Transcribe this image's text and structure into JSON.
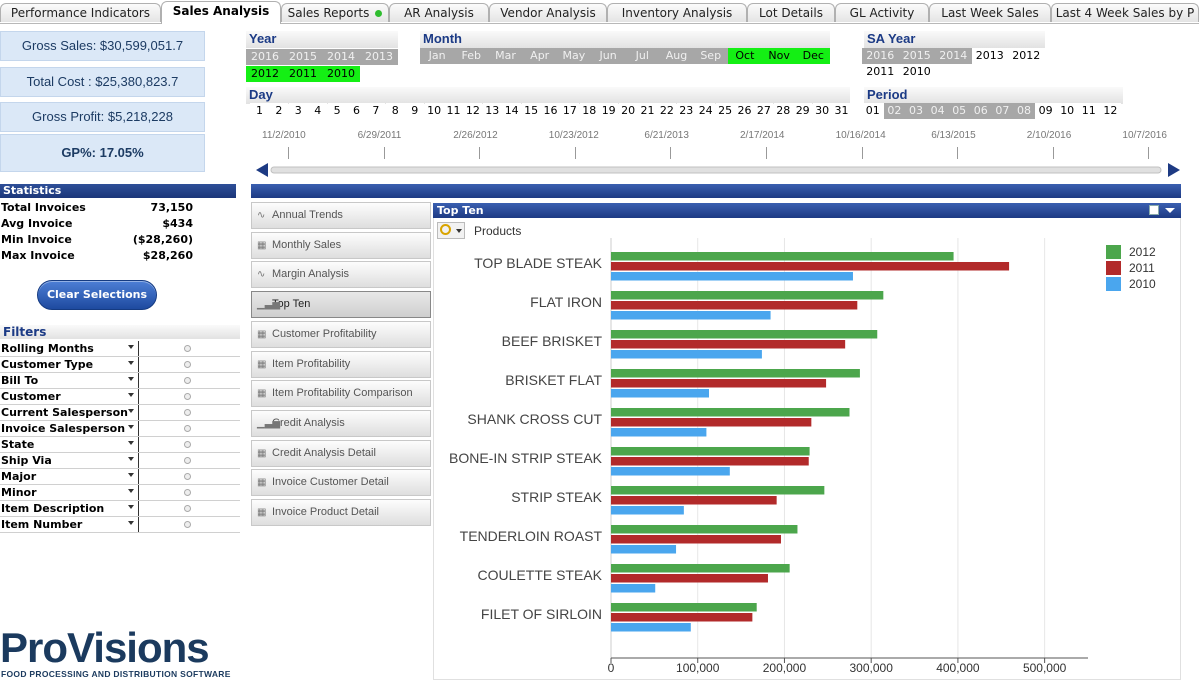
{
  "tabs": [
    "Performance Indicators",
    "Sales Analysis",
    "Sales Reports",
    "AR Analysis",
    "Vendor Analysis",
    "Inventory Analysis",
    "Lot Details",
    "GL Activity",
    "Last Week Sales",
    "Last 4 Week Sales by P"
  ],
  "active_tab": "Sales Analysis",
  "kpis": [
    "Gross Sales: $30,599,051.7",
    "Total Cost : $25,380,823.7",
    "Gross Profit: $5,218,228",
    "GP%: 17.05%"
  ],
  "statistics": {
    "title": "Statistics",
    "rows": [
      {
        "label": "Total Invoices",
        "value": "73,150"
      },
      {
        "label": "Avg Invoice",
        "value": "$434"
      },
      {
        "label": "Min Invoice",
        "value": "($28,260)"
      },
      {
        "label": "Max Invoice",
        "value": "$28,260"
      }
    ]
  },
  "clear_selections": "Clear Selections",
  "filters": {
    "title": "Filters",
    "items": [
      "Rolling Months",
      "Customer Type",
      "Bill To",
      "Customer",
      "Current Salesperson",
      "Invoice Salesperson",
      "State",
      "Ship Via",
      "Major",
      "Minor",
      "Item Description",
      "Item Number"
    ]
  },
  "year_box": {
    "title": "Year",
    "row1": [
      {
        "t": "2016",
        "s": "ex"
      },
      {
        "t": "2015",
        "s": "ex"
      },
      {
        "t": "2014",
        "s": "ex"
      },
      {
        "t": "2013",
        "s": "ex"
      }
    ],
    "row2": [
      {
        "t": "2012",
        "s": "sel"
      },
      {
        "t": "2011",
        "s": "sel"
      },
      {
        "t": "2010",
        "s": "sel"
      }
    ]
  },
  "month_box": {
    "title": "Month",
    "items": [
      {
        "t": "Jan",
        "s": "ex"
      },
      {
        "t": "Feb",
        "s": "ex"
      },
      {
        "t": "Mar",
        "s": "ex"
      },
      {
        "t": "Apr",
        "s": "ex"
      },
      {
        "t": "May",
        "s": "ex"
      },
      {
        "t": "Jun",
        "s": "ex"
      },
      {
        "t": "Jul",
        "s": "ex"
      },
      {
        "t": "Aug",
        "s": "ex"
      },
      {
        "t": "Sep",
        "s": "ex"
      },
      {
        "t": "Oct",
        "s": "sel"
      },
      {
        "t": "Nov",
        "s": "sel"
      },
      {
        "t": "Dec",
        "s": "sel"
      }
    ]
  },
  "day_box": {
    "title": "Day",
    "items": [
      "1",
      "2",
      "3",
      "4",
      "5",
      "6",
      "7",
      "8",
      "9",
      "10",
      "11",
      "12",
      "13",
      "14",
      "15",
      "16",
      "17",
      "18",
      "19",
      "20",
      "21",
      "22",
      "23",
      "24",
      "25",
      "26",
      "27",
      "28",
      "29",
      "30",
      "31"
    ]
  },
  "sa_year_box": {
    "title": "SA Year",
    "row1": [
      {
        "t": "2016",
        "s": "ex"
      },
      {
        "t": "2015",
        "s": "ex"
      },
      {
        "t": "2014",
        "s": "ex"
      },
      {
        "t": "2013",
        "s": "opt"
      },
      {
        "t": "2012",
        "s": "opt"
      }
    ],
    "row2": [
      {
        "t": "2011",
        "s": "opt"
      },
      {
        "t": "2010",
        "s": "opt"
      }
    ]
  },
  "period_box": {
    "title": "Period",
    "items": [
      {
        "t": "01",
        "s": "opt"
      },
      {
        "t": "02",
        "s": "ex"
      },
      {
        "t": "03",
        "s": "ex"
      },
      {
        "t": "04",
        "s": "ex"
      },
      {
        "t": "05",
        "s": "ex"
      },
      {
        "t": "06",
        "s": "ex"
      },
      {
        "t": "07",
        "s": "ex"
      },
      {
        "t": "08",
        "s": "ex"
      },
      {
        "t": "09",
        "s": "opt"
      },
      {
        "t": "10",
        "s": "opt"
      },
      {
        "t": "11",
        "s": "opt"
      },
      {
        "t": "12",
        "s": "opt"
      }
    ]
  },
  "timeline": [
    "11/2/2010",
    "6/29/2011",
    "2/26/2012",
    "10/23/2012",
    "6/21/2013",
    "2/17/2014",
    "10/16/2014",
    "6/13/2015",
    "2/10/2016",
    "10/7/2016"
  ],
  "sheet_buttons": [
    {
      "label": "Annual Trends",
      "icon": "line-chart-icon"
    },
    {
      "label": "Monthly Sales",
      "icon": "table-icon"
    },
    {
      "label": "Margin Analysis",
      "icon": "line-chart-icon"
    },
    {
      "label": "Top Ten",
      "icon": "bar-chart-icon",
      "active": true
    },
    {
      "label": "Customer Profitability",
      "icon": "table-icon"
    },
    {
      "label": "Item Profitability",
      "icon": "table-icon"
    },
    {
      "label": "Item Profitability Comparison",
      "icon": "table-icon"
    },
    {
      "label": "Credit Analysis",
      "icon": "bar-chart-icon"
    },
    {
      "label": "Credit Analysis Detail",
      "icon": "table-icon"
    },
    {
      "label": "Invoice Customer Detail",
      "icon": "table-icon"
    },
    {
      "label": "Invoice Product Detail",
      "icon": "table-icon"
    }
  ],
  "chart_panel": {
    "title": "Top Ten",
    "dimension": "Products"
  },
  "chart_data": {
    "type": "bar",
    "orientation": "horizontal",
    "title": "",
    "categories": [
      "TOP BLADE STEAK",
      "FLAT IRON",
      "BEEF BRISKET",
      "BRISKET FLAT",
      "SHANK CROSS CUT",
      "BONE-IN STRIP STEAK",
      "STRIP STEAK",
      "TENDERLOIN ROAST",
      "COULETTE STEAK",
      "FILET OF SIRLOIN"
    ],
    "series": [
      {
        "name": "2012",
        "color": "#4ca64c",
        "values": [
          395000,
          314000,
          307000,
          287000,
          275000,
          229000,
          246000,
          215000,
          206000,
          168000
        ]
      },
      {
        "name": "2011",
        "color": "#b22a2a",
        "values": [
          459000,
          284000,
          270000,
          248000,
          231000,
          228000,
          191000,
          196000,
          181000,
          163000
        ]
      },
      {
        "name": "2010",
        "color": "#4aa6ee",
        "values": [
          279000,
          184000,
          174000,
          113000,
          110000,
          137000,
          84000,
          75000,
          51000,
          92000
        ]
      }
    ],
    "xlim": [
      0,
      550000
    ],
    "xticks": [
      "0",
      "100,000",
      "200,000",
      "300,000",
      "400,000",
      "500,000"
    ],
    "tick_values": [
      0,
      100000,
      200000,
      300000,
      400000,
      500000
    ],
    "legend": "top-right",
    "grid": true
  },
  "logo": {
    "name": "ProVisions",
    "tagline": "FOOD PROCESSING AND DISTRIBUTION SOFTWARE"
  }
}
